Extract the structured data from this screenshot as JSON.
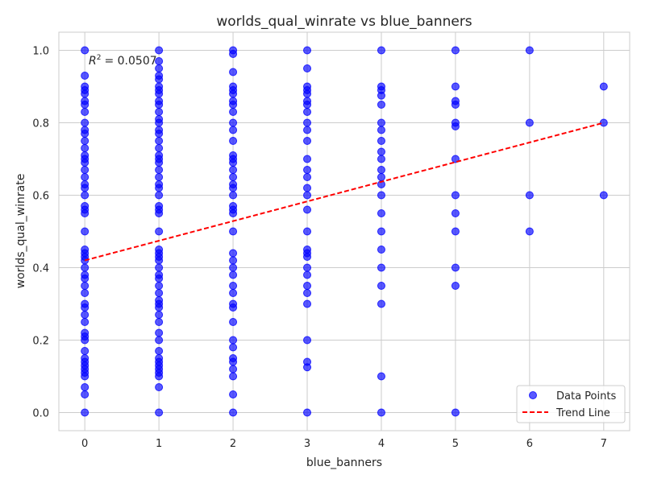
{
  "chart_data": {
    "type": "scatter",
    "title": "worlds_qual_winrate vs blue_banners",
    "xlabel": "blue_banners",
    "ylabel": "worlds_qual_winrate",
    "xlim": [
      -0.35,
      7.35
    ],
    "ylim": [
      -0.05,
      1.05
    ],
    "xticks": [
      0,
      1,
      2,
      3,
      4,
      5,
      6,
      7
    ],
    "yticks": [
      0.0,
      0.2,
      0.4,
      0.6,
      0.8,
      1.0
    ],
    "ytick_labels": [
      "0.0",
      "0.2",
      "0.4",
      "0.6",
      "0.8",
      "1.0"
    ],
    "grid": true,
    "legend_position": "bottom-right",
    "annotation": {
      "text": "= 0.0507",
      "symbol": "R",
      "superscript": "2"
    },
    "series": [
      {
        "name": "Data Points",
        "kind": "scatter",
        "color": "#0000ff",
        "points": [
          [
            0,
            0
          ],
          [
            0,
            0.05
          ],
          [
            0,
            0.07
          ],
          [
            0,
            0.1
          ],
          [
            0,
            0.11
          ],
          [
            0,
            0.12
          ],
          [
            0,
            0.13
          ],
          [
            0,
            0.14
          ],
          [
            0,
            0.15
          ],
          [
            0,
            0.17
          ],
          [
            0,
            0.2
          ],
          [
            0,
            0.21
          ],
          [
            0,
            0.22
          ],
          [
            0,
            0.25
          ],
          [
            0,
            0.27
          ],
          [
            0,
            0.29
          ],
          [
            0,
            0.3
          ],
          [
            0,
            0.33
          ],
          [
            0,
            0.35
          ],
          [
            0,
            0.37
          ],
          [
            0,
            0.38
          ],
          [
            0,
            0.4
          ],
          [
            0,
            0.42
          ],
          [
            0,
            0.43
          ],
          [
            0,
            0.44
          ],
          [
            0,
            0.45
          ],
          [
            0,
            0.5
          ],
          [
            0,
            0.55
          ],
          [
            0,
            0.56
          ],
          [
            0,
            0.57
          ],
          [
            0,
            0.6
          ],
          [
            0,
            0.62
          ],
          [
            0,
            0.63
          ],
          [
            0,
            0.65
          ],
          [
            0,
            0.67
          ],
          [
            0,
            0.69
          ],
          [
            0,
            0.7
          ],
          [
            0,
            0.71
          ],
          [
            0,
            0.73
          ],
          [
            0,
            0.75
          ],
          [
            0,
            0.77
          ],
          [
            0,
            0.78
          ],
          [
            0,
            0.8
          ],
          [
            0,
            0.83
          ],
          [
            0,
            0.85
          ],
          [
            0,
            0.86
          ],
          [
            0,
            0.88
          ],
          [
            0,
            0.89
          ],
          [
            0,
            0.9
          ],
          [
            0,
            0.93
          ],
          [
            0,
            1.0
          ],
          [
            1,
            0
          ],
          [
            1,
            0.07
          ],
          [
            1,
            0.1
          ],
          [
            1,
            0.11
          ],
          [
            1,
            0.12
          ],
          [
            1,
            0.13
          ],
          [
            1,
            0.14
          ],
          [
            1,
            0.15
          ],
          [
            1,
            0.17
          ],
          [
            1,
            0.2
          ],
          [
            1,
            0.22
          ],
          [
            1,
            0.25
          ],
          [
            1,
            0.27
          ],
          [
            1,
            0.29
          ],
          [
            1,
            0.3
          ],
          [
            1,
            0.31
          ],
          [
            1,
            0.33
          ],
          [
            1,
            0.35
          ],
          [
            1,
            0.37
          ],
          [
            1,
            0.38
          ],
          [
            1,
            0.4
          ],
          [
            1,
            0.42
          ],
          [
            1,
            0.43
          ],
          [
            1,
            0.44
          ],
          [
            1,
            0.45
          ],
          [
            1,
            0.5
          ],
          [
            1,
            0.55
          ],
          [
            1,
            0.56
          ],
          [
            1,
            0.57
          ],
          [
            1,
            0.6
          ],
          [
            1,
            0.62
          ],
          [
            1,
            0.63
          ],
          [
            1,
            0.65
          ],
          [
            1,
            0.67
          ],
          [
            1,
            0.69
          ],
          [
            1,
            0.7
          ],
          [
            1,
            0.71
          ],
          [
            1,
            0.73
          ],
          [
            1,
            0.75
          ],
          [
            1,
            0.77
          ],
          [
            1,
            0.78
          ],
          [
            1,
            0.8
          ],
          [
            1,
            0.81
          ],
          [
            1,
            0.83
          ],
          [
            1,
            0.85
          ],
          [
            1,
            0.86
          ],
          [
            1,
            0.88
          ],
          [
            1,
            0.89
          ],
          [
            1,
            0.9
          ],
          [
            1,
            0.92
          ],
          [
            1,
            0.93
          ],
          [
            1,
            0.95
          ],
          [
            1,
            0.97
          ],
          [
            1,
            1.0
          ],
          [
            2,
            0
          ],
          [
            2,
            0.05
          ],
          [
            2,
            0.1
          ],
          [
            2,
            0.12
          ],
          [
            2,
            0.14
          ],
          [
            2,
            0.15
          ],
          [
            2,
            0.18
          ],
          [
            2,
            0.2
          ],
          [
            2,
            0.25
          ],
          [
            2,
            0.29
          ],
          [
            2,
            0.3
          ],
          [
            2,
            0.33
          ],
          [
            2,
            0.35
          ],
          [
            2,
            0.38
          ],
          [
            2,
            0.4
          ],
          [
            2,
            0.42
          ],
          [
            2,
            0.44
          ],
          [
            2,
            0.5
          ],
          [
            2,
            0.55
          ],
          [
            2,
            0.56
          ],
          [
            2,
            0.57
          ],
          [
            2,
            0.6
          ],
          [
            2,
            0.62
          ],
          [
            2,
            0.63
          ],
          [
            2,
            0.65
          ],
          [
            2,
            0.67
          ],
          [
            2,
            0.69
          ],
          [
            2,
            0.7
          ],
          [
            2,
            0.71
          ],
          [
            2,
            0.75
          ],
          [
            2,
            0.78
          ],
          [
            2,
            0.8
          ],
          [
            2,
            0.83
          ],
          [
            2,
            0.85
          ],
          [
            2,
            0.86
          ],
          [
            2,
            0.88
          ],
          [
            2,
            0.89
          ],
          [
            2,
            0.9
          ],
          [
            2,
            0.94
          ],
          [
            2,
            0.99
          ],
          [
            2,
            1.0
          ],
          [
            3,
            0
          ],
          [
            3,
            0.125
          ],
          [
            3,
            0.14
          ],
          [
            3,
            0.2
          ],
          [
            3,
            0.3
          ],
          [
            3,
            0.33
          ],
          [
            3,
            0.35
          ],
          [
            3,
            0.38
          ],
          [
            3,
            0.4
          ],
          [
            3,
            0.43
          ],
          [
            3,
            0.44
          ],
          [
            3,
            0.45
          ],
          [
            3,
            0.5
          ],
          [
            3,
            0.56
          ],
          [
            3,
            0.6
          ],
          [
            3,
            0.62
          ],
          [
            3,
            0.65
          ],
          [
            3,
            0.67
          ],
          [
            3,
            0.7
          ],
          [
            3,
            0.75
          ],
          [
            3,
            0.78
          ],
          [
            3,
            0.8
          ],
          [
            3,
            0.83
          ],
          [
            3,
            0.85
          ],
          [
            3,
            0.86
          ],
          [
            3,
            0.88
          ],
          [
            3,
            0.89
          ],
          [
            3,
            0.9
          ],
          [
            3,
            0.95
          ],
          [
            3,
            1.0
          ],
          [
            4,
            0
          ],
          [
            4,
            0.1
          ],
          [
            4,
            0.3
          ],
          [
            4,
            0.35
          ],
          [
            4,
            0.4
          ],
          [
            4,
            0.45
          ],
          [
            4,
            0.5
          ],
          [
            4,
            0.55
          ],
          [
            4,
            0.6
          ],
          [
            4,
            0.63
          ],
          [
            4,
            0.65
          ],
          [
            4,
            0.67
          ],
          [
            4,
            0.7
          ],
          [
            4,
            0.72
          ],
          [
            4,
            0.75
          ],
          [
            4,
            0.78
          ],
          [
            4,
            0.8
          ],
          [
            4,
            0.85
          ],
          [
            4,
            0.875
          ],
          [
            4,
            0.89
          ],
          [
            4,
            0.9
          ],
          [
            4,
            1.0
          ],
          [
            5,
            0
          ],
          [
            5,
            0.35
          ],
          [
            5,
            0.4
          ],
          [
            5,
            0.5
          ],
          [
            5,
            0.55
          ],
          [
            5,
            0.6
          ],
          [
            5,
            0.7
          ],
          [
            5,
            0.79
          ],
          [
            5,
            0.8
          ],
          [
            5,
            0.85
          ],
          [
            5,
            0.86
          ],
          [
            5,
            0.9
          ],
          [
            5,
            1.0
          ],
          [
            6,
            0.5
          ],
          [
            6,
            0.6
          ],
          [
            6,
            0.8
          ],
          [
            6,
            1.0
          ],
          [
            7,
            0.6
          ],
          [
            7,
            0.8
          ],
          [
            7,
            0.9
          ]
        ]
      },
      {
        "name": "Trend Line",
        "kind": "line",
        "color": "#ff0000",
        "x": [
          0,
          7
        ],
        "y": [
          0.42,
          0.8
        ]
      }
    ]
  }
}
